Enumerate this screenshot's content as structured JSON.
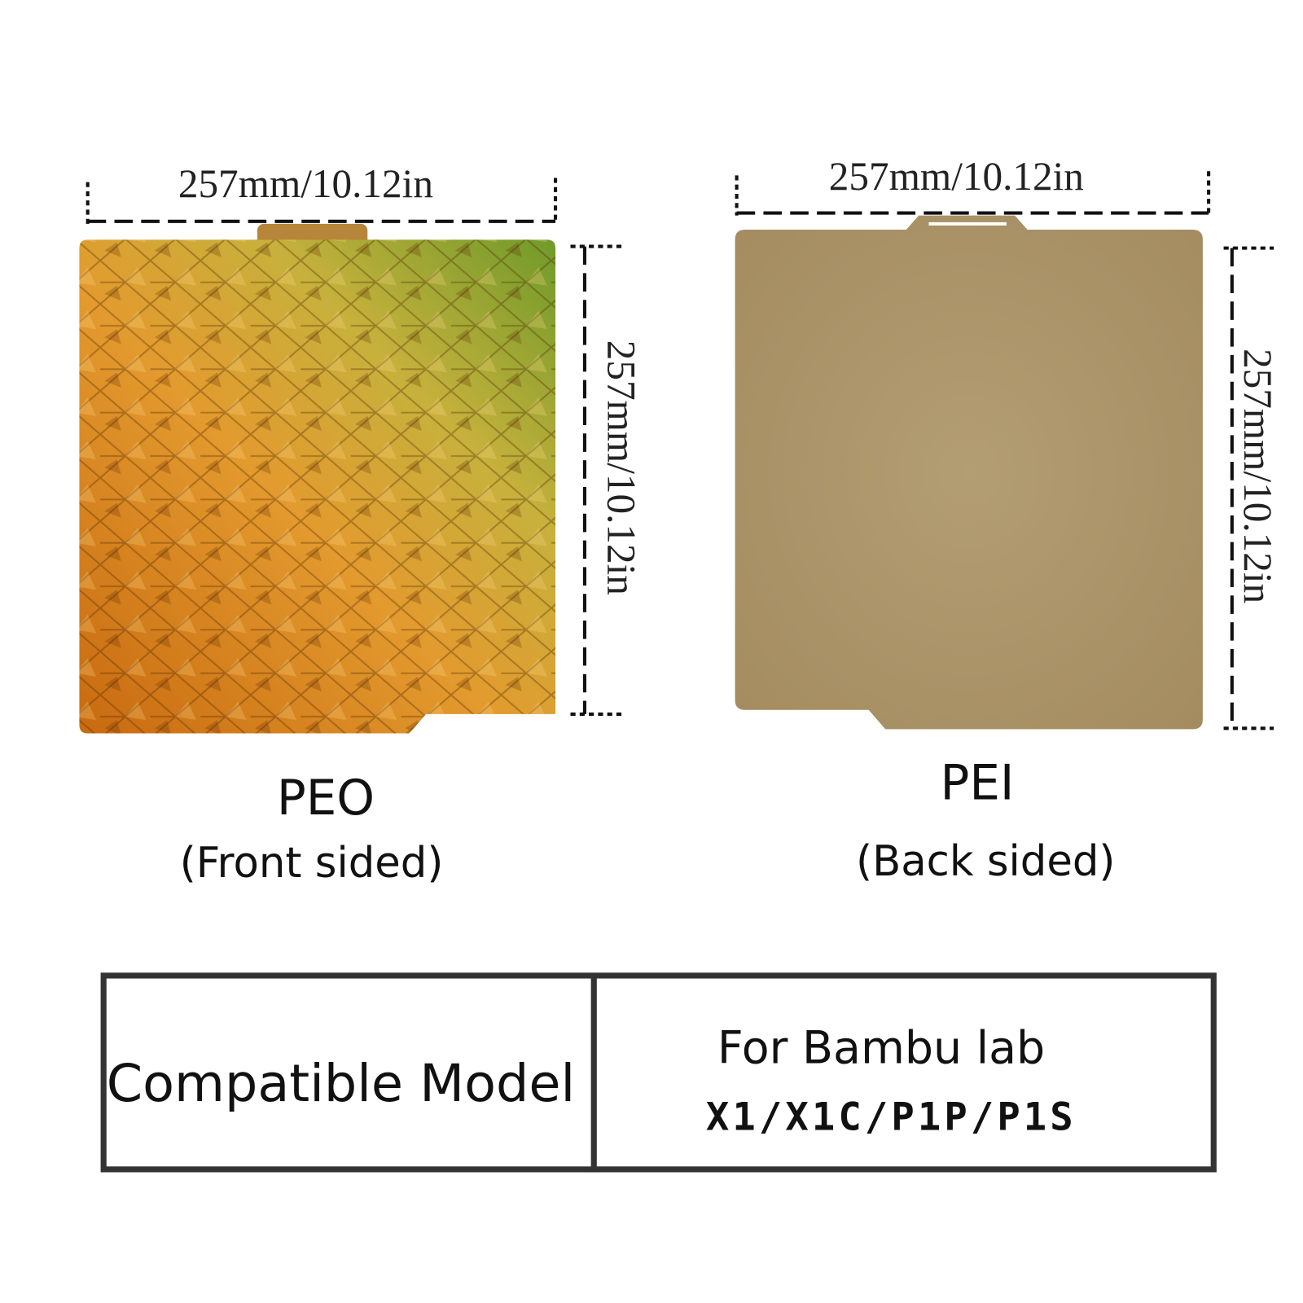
{
  "plates": [
    {
      "width_label": "257mm/10.12in",
      "height_label": "257mm/10.12in",
      "name": "PEO",
      "side": "(Front sided)"
    },
    {
      "width_label": "257mm/10.12in",
      "height_label": "257mm/10.12in",
      "name": "PEI",
      "side": "(Back sided)"
    }
  ],
  "table": {
    "header": "Compatible Model",
    "brand": "For Bambu lab",
    "models": "X1/X1C/P1P/P1S"
  }
}
